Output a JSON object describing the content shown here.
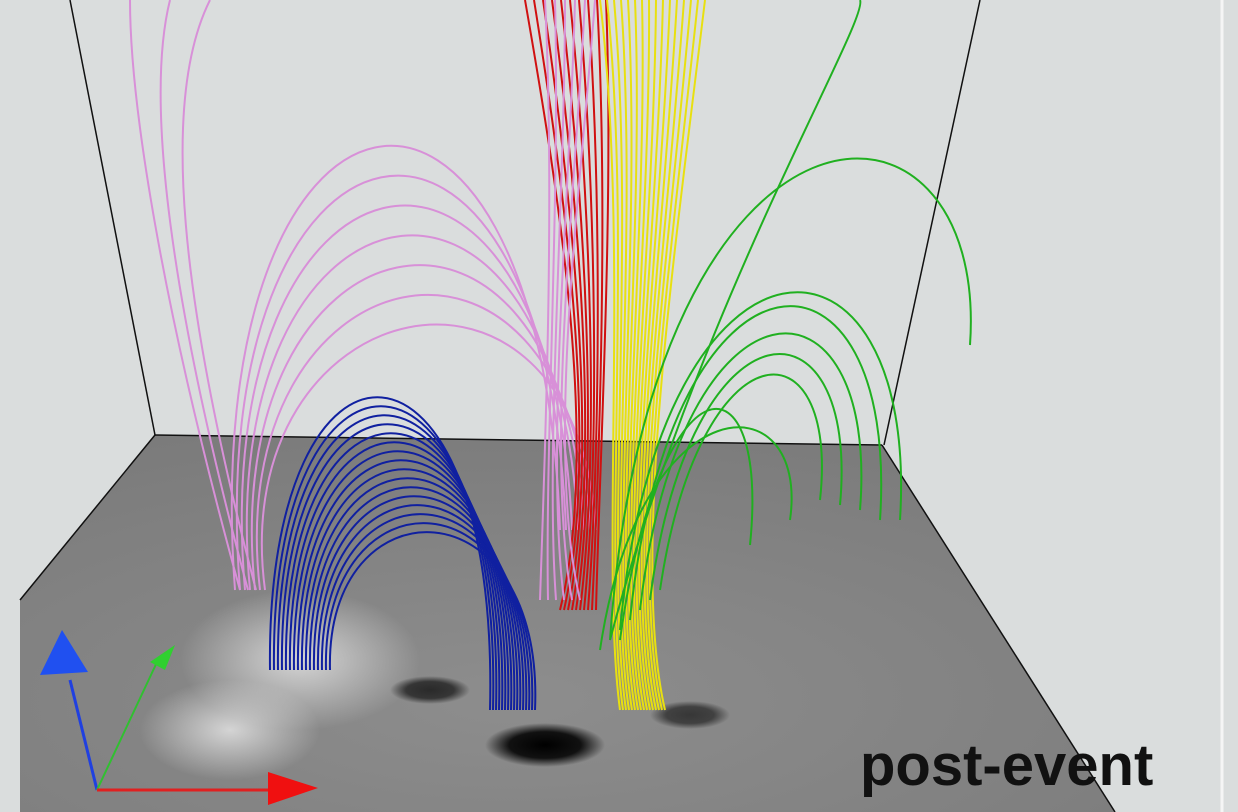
{
  "label": "post-event"
}
